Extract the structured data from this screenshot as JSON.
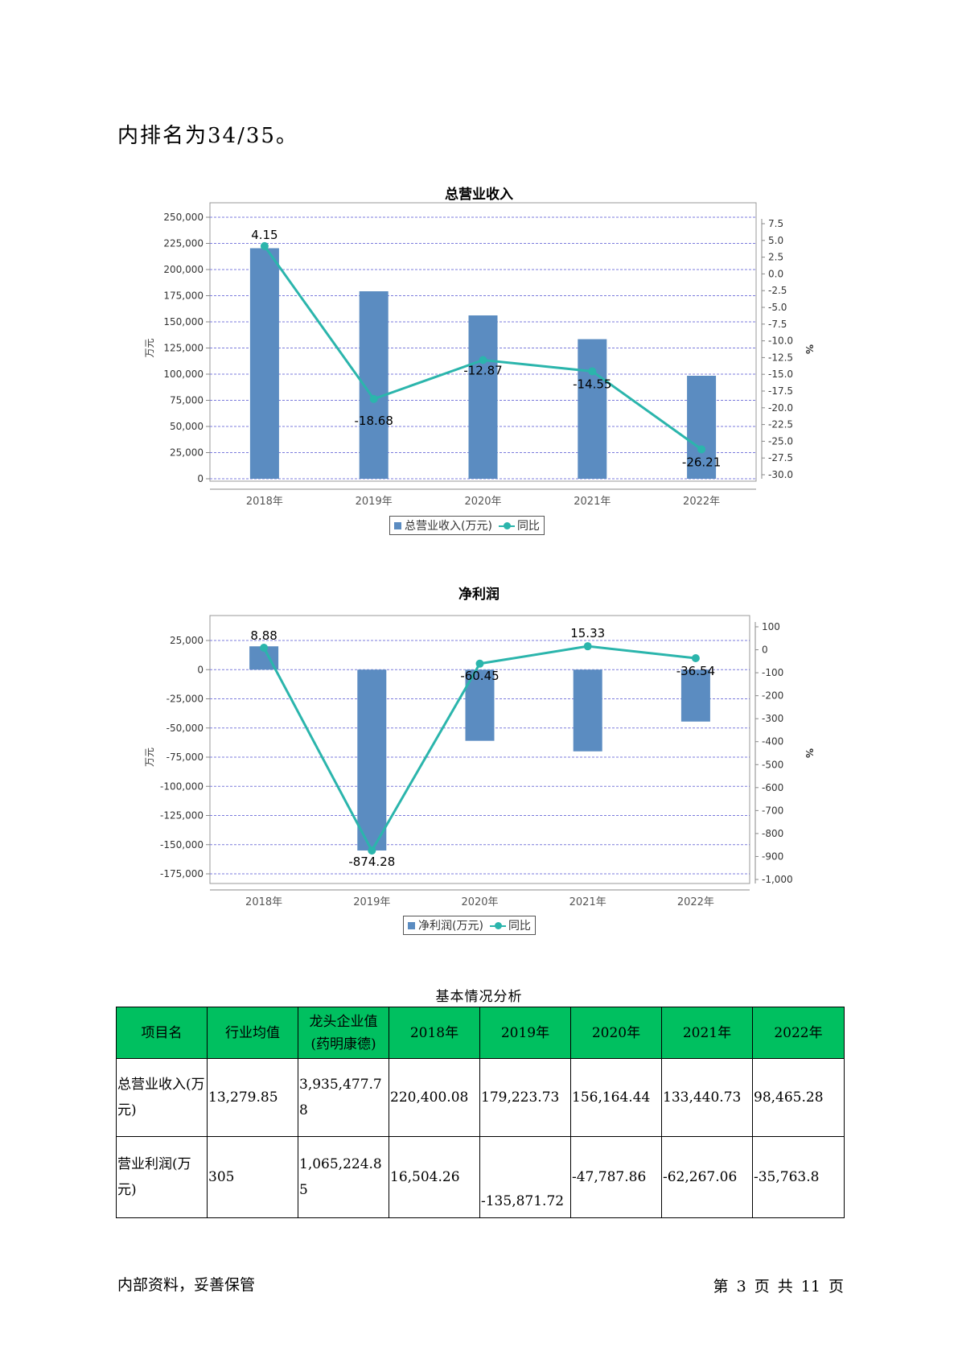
{
  "intro_text": "内排名为34/35。",
  "revenue_chart": {
    "title": "总营业收入",
    "legend": {
      "bar": "总营业收入(万元)",
      "line": "同比"
    }
  },
  "profit_chart": {
    "title": "净利润",
    "legend": {
      "bar": "净利润(万元)",
      "line": "同比"
    }
  },
  "chart_data": [
    {
      "type": "bar",
      "title": "总营业收入",
      "categories": [
        "2018年",
        "2019年",
        "2020年",
        "2021年",
        "2022年"
      ],
      "series": [
        {
          "name": "总营业收入(万元)",
          "type": "bar",
          "axis": "left",
          "values": [
            220400.08,
            179223.73,
            156164.44,
            133440.73,
            98465.28
          ]
        },
        {
          "name": "同比",
          "type": "line",
          "axis": "right",
          "values": [
            4.15,
            -18.68,
            -12.87,
            -14.55,
            -26.21
          ],
          "labels": [
            "4.15",
            "-18.68",
            "-12.87",
            "-14.55",
            "-26.21"
          ]
        }
      ],
      "ylabel": "万元",
      "y2label": "%",
      "ylim": [
        0,
        250000
      ],
      "yticks": [
        0,
        25000,
        50000,
        75000,
        100000,
        125000,
        150000,
        175000,
        200000,
        225000,
        250000
      ],
      "ytick_labels": [
        "0",
        "25,000",
        "50,000",
        "75,000",
        "100,000",
        "125,000",
        "150,000",
        "175,000",
        "200,000",
        "225,000",
        "250,000"
      ],
      "y2lim": [
        -30,
        7.5
      ],
      "y2ticks": [
        7.5,
        5,
        2.5,
        0,
        -2.5,
        -5,
        -7.5,
        -10,
        -12.5,
        -15,
        -17.5,
        -20,
        -22.5,
        -25,
        -27.5,
        -30
      ],
      "y2tick_labels": [
        "7.5",
        "5.0",
        "2.5",
        "0.0",
        "-2.5",
        "-5.0",
        "-7.5",
        "-10.0",
        "-12.5",
        "-15.0",
        "-17.5",
        "-20.0",
        "-22.5",
        "-25.0",
        "-27.5",
        "-30.0"
      ],
      "grid": true,
      "legend_position": "bottom",
      "colors": {
        "bar": "#5b8cc1",
        "line": "#2bb5ac",
        "grid": "#7b7bdc"
      }
    },
    {
      "type": "bar",
      "title": "净利润",
      "categories": [
        "2018年",
        "2019年",
        "2020年",
        "2021年",
        "2022年"
      ],
      "series": [
        {
          "name": "净利润(万元)",
          "type": "bar",
          "axis": "left",
          "values": [
            20000,
            -155000,
            -61000,
            -70000,
            -44500
          ]
        },
        {
          "name": "同比",
          "type": "line",
          "axis": "right",
          "values": [
            8.88,
            -874.28,
            -60.45,
            15.33,
            -36.54
          ],
          "labels": [
            "8.88",
            "-874.28",
            "-60.45",
            "15.33",
            "-36.54"
          ]
        }
      ],
      "ylabel": "万元",
      "y2label": "%",
      "ylim": [
        -175000,
        25000
      ],
      "yticks": [
        25000,
        0,
        -25000,
        -50000,
        -75000,
        -100000,
        -125000,
        -150000,
        -175000
      ],
      "ytick_labels": [
        "25,000",
        "0",
        "-25,000",
        "-50,000",
        "-75,000",
        "-100,000",
        "-125,000",
        "-150,000",
        "-175,000"
      ],
      "y2lim": [
        -1000,
        100
      ],
      "y2ticks": [
        100,
        0,
        -100,
        -200,
        -300,
        -400,
        -500,
        -600,
        -700,
        -800,
        -900,
        -1000
      ],
      "y2tick_labels": [
        "100",
        "0",
        "-100",
        "-200",
        "-300",
        "-400",
        "-500",
        "-600",
        "-700",
        "-800",
        "-900",
        "-1,000"
      ],
      "grid": true,
      "legend_position": "bottom",
      "colors": {
        "bar": "#5b8cc1",
        "line": "#2bb5ac",
        "grid": "#7b7bdc"
      }
    }
  ],
  "table": {
    "caption": "基本情况分析",
    "headers": [
      "项目名",
      "行业均值",
      "龙头企业值(药明康德)",
      "2018年",
      "2019年",
      "2020年",
      "2021年",
      "2022年"
    ],
    "rows": [
      {
        "name": "总营业收入(万元)",
        "cells": [
          "13,279.85",
          "3,935,477.78",
          "220,400.08",
          "179,223.73",
          "156,164.44",
          "133,440.73",
          "98,465.28"
        ]
      },
      {
        "name": "营业利润(万元)",
        "cells": [
          "305",
          "1,065,224.85",
          "16,504.26",
          "-135,871.72",
          "-47,787.86",
          "-62,267.06",
          "-35,763.8"
        ]
      }
    ]
  },
  "footer": {
    "left": "内部资料，妥善保管",
    "right": "第 3 页   共 11 页"
  }
}
